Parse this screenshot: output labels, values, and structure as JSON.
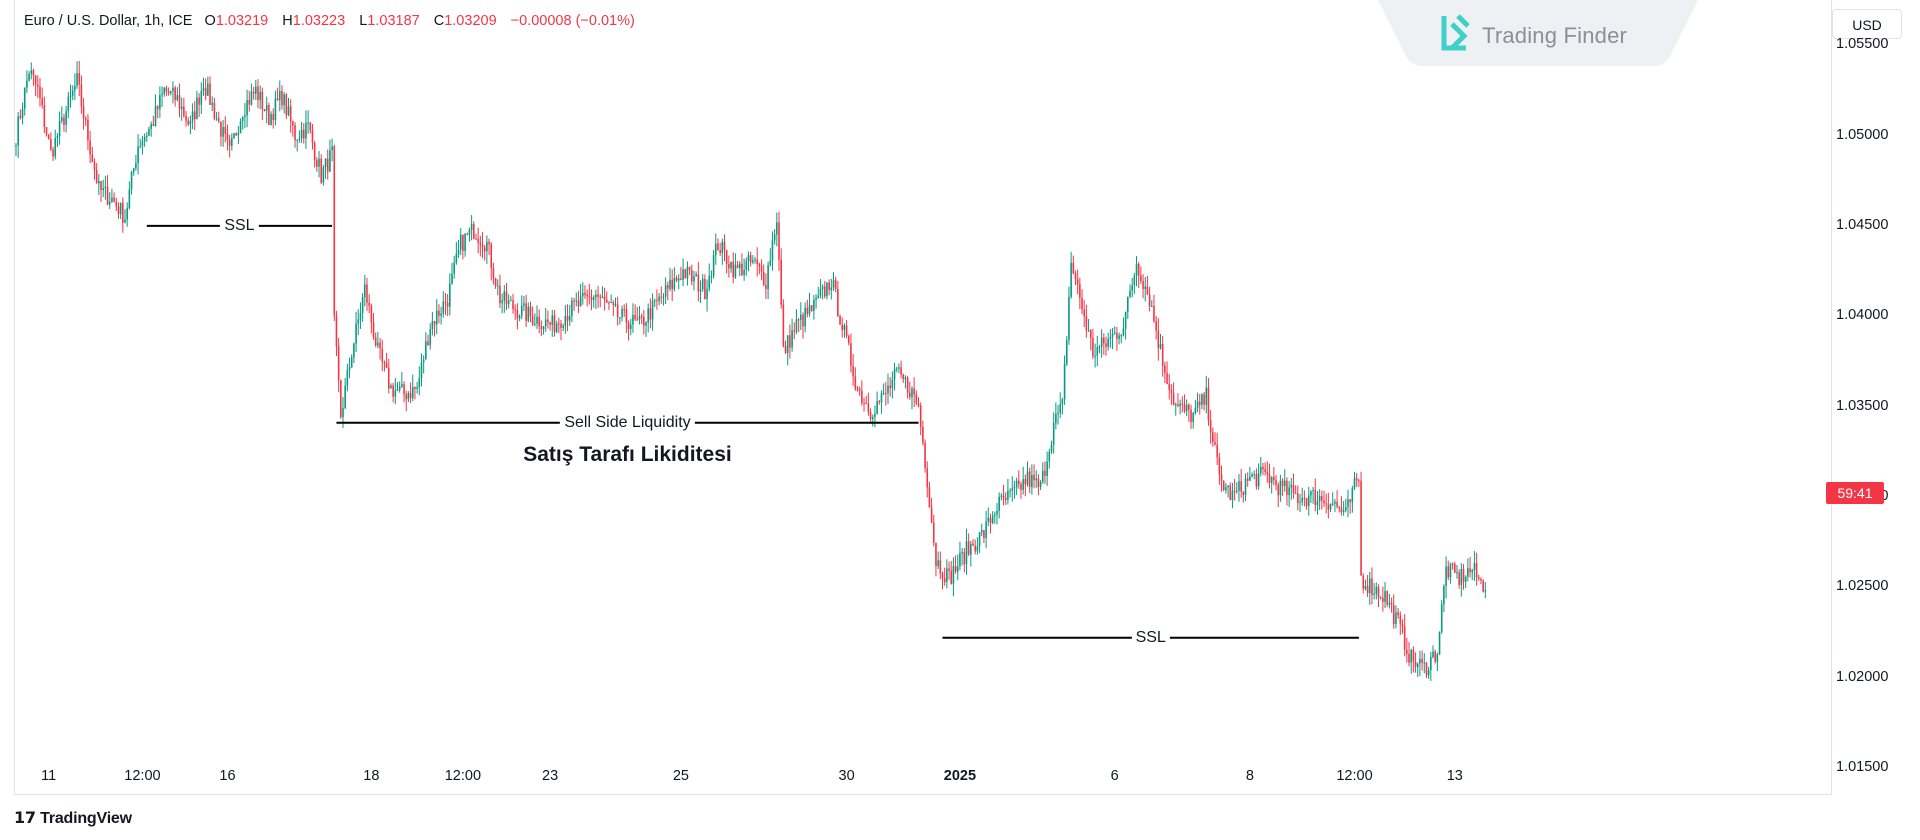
{
  "legend": {
    "symbol": "Euro / U.S. Dollar, 1h, ICE",
    "o_label": "O",
    "o_value": "1.03219",
    "h_label": "H",
    "h_value": "1.03223",
    "l_label": "L",
    "l_value": "1.03187",
    "c_label": "C",
    "c_value": "1.03209",
    "change": "−0.00008 (−0.01%)"
  },
  "branding": {
    "logo_text": "Trading Finder",
    "platform": "TradingView"
  },
  "currency_button": "USD",
  "price_badge": "59:41",
  "colors": {
    "up": "#089981",
    "down": "#f23645",
    "line": "#000000",
    "badge": "#f23645"
  },
  "chart_data": {
    "type": "candlestick",
    "title": "Euro / U.S. Dollar, 1h, ICE",
    "ylim": [
      1.0135,
      1.0575
    ],
    "y_ticks": [
      "1.05500",
      "1.05000",
      "1.04500",
      "1.04000",
      "1.03500",
      "1.03000",
      "1.02500",
      "1.02000",
      "1.01500"
    ],
    "x_ticks": [
      {
        "label": "11",
        "bold": false,
        "bar": 15
      },
      {
        "label": "12:00",
        "bold": false,
        "bar": 58
      },
      {
        "label": "16",
        "bold": false,
        "bar": 97
      },
      {
        "label": "18",
        "bold": false,
        "bar": 163
      },
      {
        "label": "12:00",
        "bold": false,
        "bar": 205
      },
      {
        "label": "23",
        "bold": false,
        "bar": 245
      },
      {
        "label": "25",
        "bold": false,
        "bar": 305
      },
      {
        "label": "30",
        "bold": false,
        "bar": 381
      },
      {
        "label": "2025",
        "bold": true,
        "bar": 433
      },
      {
        "label": "6",
        "bold": false,
        "bar": 504
      },
      {
        "label": "8",
        "bold": false,
        "bar": 566
      },
      {
        "label": "12:00",
        "bold": false,
        "bar": 614
      },
      {
        "label": "13",
        "bold": false,
        "bar": 660
      }
    ],
    "grid": false,
    "anchors": [
      [
        0,
        1.05
      ],
      [
        6,
        1.0536
      ],
      [
        10,
        1.0525
      ],
      [
        16,
        1.049
      ],
      [
        22,
        1.051
      ],
      [
        28,
        1.053
      ],
      [
        32,
        1.0505
      ],
      [
        38,
        1.047
      ],
      [
        44,
        1.0465
      ],
      [
        50,
        1.0455
      ],
      [
        56,
        1.0495
      ],
      [
        62,
        1.0505
      ],
      [
        68,
        1.0525
      ],
      [
        74,
        1.052
      ],
      [
        80,
        1.0505
      ],
      [
        86,
        1.053
      ],
      [
        92,
        1.051
      ],
      [
        98,
        1.049
      ],
      [
        104,
        1.0515
      ],
      [
        110,
        1.0525
      ],
      [
        116,
        1.051
      ],
      [
        122,
        1.0522
      ],
      [
        128,
        1.05
      ],
      [
        134,
        1.0505
      ],
      [
        140,
        1.0478
      ],
      [
        145,
        1.049
      ],
      [
        146,
        1.0395
      ],
      [
        149,
        1.0345
      ],
      [
        154,
        1.038
      ],
      [
        160,
        1.0415
      ],
      [
        166,
        1.038
      ],
      [
        172,
        1.036
      ],
      [
        178,
        1.0357
      ],
      [
        184,
        1.036
      ],
      [
        190,
        1.0395
      ],
      [
        198,
        1.041
      ],
      [
        204,
        1.044
      ],
      [
        210,
        1.0448
      ],
      [
        216,
        1.044
      ],
      [
        222,
        1.041
      ],
      [
        228,
        1.0405
      ],
      [
        236,
        1.04
      ],
      [
        246,
        1.0395
      ],
      [
        256,
        1.0405
      ],
      [
        266,
        1.0412
      ],
      [
        276,
        1.04
      ],
      [
        286,
        1.0395
      ],
      [
        296,
        1.041
      ],
      [
        306,
        1.0425
      ],
      [
        316,
        1.0415
      ],
      [
        322,
        1.044
      ],
      [
        330,
        1.0425
      ],
      [
        338,
        1.043
      ],
      [
        344,
        1.042
      ],
      [
        349,
        1.0455
      ],
      [
        352,
        1.038
      ],
      [
        358,
        1.0395
      ],
      [
        366,
        1.0405
      ],
      [
        374,
        1.042
      ],
      [
        380,
        1.039
      ],
      [
        386,
        1.036
      ],
      [
        392,
        1.0348
      ],
      [
        398,
        1.0355
      ],
      [
        404,
        1.0368
      ],
      [
        410,
        1.036
      ],
      [
        414,
        1.035
      ],
      [
        418,
        1.031
      ],
      [
        422,
        1.0265
      ],
      [
        428,
        1.0255
      ],
      [
        436,
        1.027
      ],
      [
        444,
        1.028
      ],
      [
        450,
        1.0295
      ],
      [
        456,
        1.03
      ],
      [
        464,
        1.031
      ],
      [
        470,
        1.0305
      ],
      [
        476,
        1.034
      ],
      [
        480,
        1.035
      ],
      [
        484,
        1.043
      ],
      [
        488,
        1.041
      ],
      [
        494,
        1.038
      ],
      [
        500,
        1.0385
      ],
      [
        508,
        1.0395
      ],
      [
        514,
        1.043
      ],
      [
        520,
        1.041
      ],
      [
        526,
        1.0375
      ],
      [
        532,
        1.035
      ],
      [
        540,
        1.0345
      ],
      [
        546,
        1.0355
      ],
      [
        552,
        1.031
      ],
      [
        558,
        1.03
      ],
      [
        566,
        1.031
      ],
      [
        574,
        1.0312
      ],
      [
        580,
        1.0305
      ],
      [
        588,
        1.03
      ],
      [
        596,
        1.03
      ],
      [
        604,
        1.0297
      ],
      [
        610,
        1.029
      ],
      [
        614,
        1.0305
      ],
      [
        616,
        1.031
      ],
      [
        617,
        1.0255
      ],
      [
        622,
        1.025
      ],
      [
        628,
        1.0245
      ],
      [
        634,
        1.023
      ],
      [
        640,
        1.021
      ],
      [
        646,
        1.0205
      ],
      [
        652,
        1.0215
      ],
      [
        656,
        1.026
      ],
      [
        662,
        1.0255
      ],
      [
        668,
        1.026
      ],
      [
        672,
        1.0252
      ]
    ],
    "annotations": [
      {
        "text": "SSL",
        "bar0": 60,
        "bar1": 145,
        "price": 1.045
      },
      {
        "text": "Sell Side Liquidity",
        "bar0": 147,
        "bar1": 414,
        "price": 1.0341
      },
      {
        "text": "SSL",
        "bar0": 425,
        "bar1": 616,
        "price": 1.0222
      }
    ],
    "caption": "Satış Tarafı Likiditesi"
  }
}
